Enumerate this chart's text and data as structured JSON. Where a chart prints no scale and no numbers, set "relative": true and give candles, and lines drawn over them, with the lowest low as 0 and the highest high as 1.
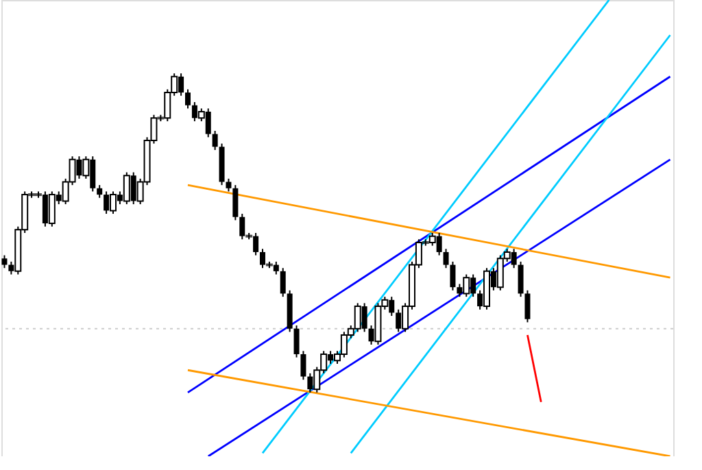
{
  "chart_data": {
    "type": "candlestick",
    "relative": true,
    "grid": false,
    "categories": [
      null,
      null,
      null,
      null,
      null,
      null,
      null,
      null,
      null,
      null,
      null,
      null,
      null,
      null,
      null,
      null,
      null,
      null,
      null,
      null,
      null,
      null,
      null,
      null,
      null,
      null,
      null,
      null,
      null,
      null,
      null,
      null,
      null,
      null,
      null,
      null,
      null,
      null,
      null,
      null,
      null,
      null,
      null,
      null,
      null,
      null,
      null,
      null,
      null,
      null,
      null,
      null,
      null,
      null,
      null,
      null,
      null,
      null,
      null,
      null,
      null,
      null,
      null,
      null,
      null,
      null,
      null,
      null,
      null,
      null,
      null,
      null,
      null,
      null,
      null,
      null,
      null,
      null,
      null,
      null,
      null,
      null,
      null,
      null,
      null,
      null,
      null,
      null,
      null,
      null,
      null,
      null,
      null,
      null,
      null,
      null,
      null,
      null,
      null
    ],
    "ohlc": [
      [
        0.42,
        0.43,
        0.39,
        0.4
      ],
      [
        0.4,
        0.41,
        0.37,
        0.38
      ],
      [
        0.38,
        0.52,
        0.37,
        0.51
      ],
      [
        0.51,
        0.63,
        0.5,
        0.62
      ],
      [
        0.62,
        0.63,
        0.61,
        0.62
      ],
      [
        0.62,
        0.63,
        0.61,
        0.62
      ],
      [
        0.62,
        0.63,
        0.52,
        0.53
      ],
      [
        0.53,
        0.63,
        0.52,
        0.62
      ],
      [
        0.62,
        0.63,
        0.59,
        0.6
      ],
      [
        0.6,
        0.67,
        0.59,
        0.66
      ],
      [
        0.66,
        0.74,
        0.65,
        0.73
      ],
      [
        0.73,
        0.74,
        0.67,
        0.68
      ],
      [
        0.68,
        0.74,
        0.67,
        0.73
      ],
      [
        0.73,
        0.74,
        0.63,
        0.64
      ],
      [
        0.64,
        0.65,
        0.61,
        0.62
      ],
      [
        0.62,
        0.63,
        0.56,
        0.57
      ],
      [
        0.57,
        0.63,
        0.56,
        0.62
      ],
      [
        0.62,
        0.63,
        0.59,
        0.6
      ],
      [
        0.6,
        0.69,
        0.59,
        0.68
      ],
      [
        0.68,
        0.69,
        0.59,
        0.6
      ],
      [
        0.6,
        0.67,
        0.59,
        0.66
      ],
      [
        0.66,
        0.8,
        0.65,
        0.79
      ],
      [
        0.79,
        0.87,
        0.78,
        0.86
      ],
      [
        0.86,
        0.87,
        0.85,
        0.86
      ],
      [
        0.86,
        0.95,
        0.85,
        0.94
      ],
      [
        0.94,
        1.0,
        0.93,
        0.99
      ],
      [
        0.99,
        1.0,
        0.93,
        0.94
      ],
      [
        0.94,
        0.95,
        0.89,
        0.9
      ],
      [
        0.9,
        0.91,
        0.85,
        0.86
      ],
      [
        0.86,
        0.89,
        0.85,
        0.88
      ],
      [
        0.88,
        0.89,
        0.8,
        0.81
      ],
      [
        0.81,
        0.82,
        0.76,
        0.77
      ],
      [
        0.77,
        0.78,
        0.65,
        0.66
      ],
      [
        0.66,
        0.67,
        0.63,
        0.64
      ],
      [
        0.64,
        0.65,
        0.54,
        0.55
      ],
      [
        0.55,
        0.56,
        0.48,
        0.49
      ],
      [
        0.49,
        0.5,
        0.48,
        0.49
      ],
      [
        0.49,
        0.5,
        0.43,
        0.44
      ],
      [
        0.44,
        0.45,
        0.39,
        0.4
      ],
      [
        0.4,
        0.41,
        0.39,
        0.4
      ],
      [
        0.4,
        0.41,
        0.37,
        0.38
      ],
      [
        0.38,
        0.39,
        0.3,
        0.31
      ],
      [
        0.31,
        0.32,
        0.19,
        0.2
      ],
      [
        0.2,
        0.21,
        0.11,
        0.12
      ],
      [
        0.12,
        0.13,
        0.04,
        0.05
      ],
      [
        0.05,
        0.06,
        0.0,
        0.01
      ],
      [
        0.01,
        0.08,
        0.0,
        0.07
      ],
      [
        0.07,
        0.13,
        0.06,
        0.12
      ],
      [
        0.12,
        0.13,
        0.09,
        0.1
      ],
      [
        0.1,
        0.13,
        0.09,
        0.12
      ],
      [
        0.12,
        0.19,
        0.11,
        0.18
      ],
      [
        0.18,
        0.21,
        0.17,
        0.2
      ],
      [
        0.2,
        0.28,
        0.19,
        0.27
      ],
      [
        0.27,
        0.28,
        0.19,
        0.2
      ],
      [
        0.2,
        0.21,
        0.15,
        0.16
      ],
      [
        0.16,
        0.28,
        0.15,
        0.27
      ],
      [
        0.27,
        0.3,
        0.26,
        0.29
      ],
      [
        0.29,
        0.3,
        0.24,
        0.25
      ],
      [
        0.25,
        0.26,
        0.19,
        0.2
      ],
      [
        0.2,
        0.28,
        0.19,
        0.27
      ],
      [
        0.27,
        0.41,
        0.26,
        0.4
      ],
      [
        0.4,
        0.48,
        0.39,
        0.47
      ],
      [
        0.47,
        0.48,
        0.46,
        0.47
      ],
      [
        0.47,
        0.5,
        0.46,
        0.49
      ],
      [
        0.49,
        0.5,
        0.43,
        0.44
      ],
      [
        0.44,
        0.45,
        0.39,
        0.4
      ],
      [
        0.4,
        0.41,
        0.32,
        0.33
      ],
      [
        0.33,
        0.34,
        0.3,
        0.31
      ],
      [
        0.31,
        0.37,
        0.3,
        0.36
      ],
      [
        0.36,
        0.37,
        0.3,
        0.31
      ],
      [
        0.31,
        0.32,
        0.26,
        0.27
      ],
      [
        0.27,
        0.39,
        0.26,
        0.38
      ],
      [
        0.38,
        0.39,
        0.32,
        0.33
      ],
      [
        0.33,
        0.43,
        0.32,
        0.42
      ],
      [
        0.42,
        0.45,
        0.41,
        0.44
      ],
      [
        0.44,
        0.45,
        0.39,
        0.4
      ],
      [
        0.4,
        0.41,
        0.3,
        0.31
      ],
      [
        0.31,
        0.32,
        0.22,
        0.23
      ],
      null,
      null,
      null,
      null,
      null,
      null,
      null,
      null,
      null,
      null,
      null,
      null,
      null,
      null,
      null,
      null,
      null,
      null,
      null,
      null,
      null
    ],
    "ref_lines": [
      {
        "axis": "y",
        "value": 0.2,
        "color": "#cccccc",
        "line_style": "dotted"
      }
    ],
    "series": [
      {
        "type": "line",
        "color": "#0000ff",
        "values": [
          null,
          null,
          null,
          null,
          null,
          null,
          null,
          null,
          null,
          null,
          null,
          null,
          null,
          null,
          null,
          null,
          null,
          null,
          null,
          null,
          null,
          null,
          null,
          null,
          null,
          null,
          null,
          0.0,
          null,
          null,
          null,
          null,
          null,
          null,
          null,
          null,
          null,
          null,
          null,
          null,
          null,
          null,
          null,
          null,
          null,
          null,
          null,
          null,
          null,
          null,
          null,
          null,
          null,
          null,
          null,
          null,
          null,
          null,
          null,
          null,
          null,
          null,
          null,
          null,
          null,
          null,
          null,
          null,
          null,
          null,
          null,
          null,
          null,
          null,
          null,
          null,
          null,
          null,
          null,
          null,
          null,
          null,
          null,
          null,
          null,
          null,
          null,
          null,
          null,
          null,
          null,
          null,
          null,
          null,
          null,
          null,
          null,
          null,
          0.99
        ]
      },
      {
        "type": "line",
        "color": "#0000ff",
        "values": [
          null,
          null,
          null,
          null,
          null,
          null,
          null,
          null,
          null,
          null,
          null,
          null,
          null,
          null,
          null,
          null,
          null,
          null,
          null,
          null,
          null,
          null,
          null,
          null,
          null,
          null,
          null,
          null,
          null,
          null,
          -0.2,
          null,
          null,
          null,
          null,
          null,
          null,
          null,
          null,
          null,
          null,
          null,
          null,
          null,
          null,
          null,
          null,
          null,
          null,
          null,
          null,
          null,
          null,
          null,
          null,
          null,
          null,
          null,
          null,
          null,
          null,
          null,
          null,
          null,
          null,
          null,
          null,
          null,
          null,
          null,
          null,
          null,
          null,
          null,
          null,
          null,
          null,
          null,
          null,
          null,
          null,
          null,
          null,
          null,
          null,
          null,
          null,
          null,
          null,
          null,
          null,
          null,
          null,
          null,
          null,
          null,
          null,
          null,
          0.73
        ]
      },
      {
        "type": "line",
        "color": "#00ccff",
        "values": [
          null,
          null,
          null,
          null,
          null,
          null,
          null,
          null,
          null,
          null,
          null,
          null,
          null,
          null,
          null,
          null,
          null,
          null,
          null,
          null,
          null,
          null,
          null,
          null,
          null,
          null,
          null,
          null,
          null,
          null,
          null,
          null,
          null,
          null,
          null,
          null,
          null,
          null,
          -0.19,
          null,
          null,
          null,
          null,
          null,
          null,
          null,
          null,
          null,
          null,
          null,
          null,
          null,
          null,
          null,
          null,
          null,
          null,
          null,
          null,
          null,
          null,
          null,
          null,
          null,
          null,
          null,
          null,
          null,
          null,
          null,
          null,
          null,
          null,
          null,
          null,
          null,
          null,
          null,
          null,
          null,
          null,
          null,
          null,
          null,
          null,
          null,
          null,
          null,
          null,
          1.23,
          null,
          null,
          null,
          null,
          null,
          null,
          null,
          null,
          null
        ]
      },
      {
        "type": "line",
        "color": "#00ccff",
        "values": [
          null,
          null,
          null,
          null,
          null,
          null,
          null,
          null,
          null,
          null,
          null,
          null,
          null,
          null,
          null,
          null,
          null,
          null,
          null,
          null,
          null,
          null,
          null,
          null,
          null,
          null,
          null,
          null,
          null,
          null,
          null,
          null,
          null,
          null,
          null,
          null,
          null,
          null,
          null,
          null,
          null,
          null,
          null,
          null,
          null,
          null,
          null,
          null,
          null,
          null,
          null,
          -0.19,
          null,
          null,
          null,
          null,
          null,
          null,
          null,
          null,
          null,
          null,
          null,
          null,
          null,
          null,
          null,
          null,
          null,
          null,
          null,
          null,
          null,
          null,
          null,
          null,
          null,
          null,
          null,
          null,
          null,
          null,
          null,
          null,
          null,
          null,
          null,
          null,
          null,
          null,
          null,
          null,
          null,
          null,
          null,
          null,
          null,
          null,
          1.12
        ]
      },
      {
        "type": "line",
        "color": "#ff9900",
        "values": [
          null,
          null,
          null,
          null,
          null,
          null,
          null,
          null,
          null,
          null,
          null,
          null,
          null,
          null,
          null,
          null,
          null,
          null,
          null,
          null,
          null,
          null,
          null,
          null,
          null,
          null,
          null,
          0.65,
          null,
          null,
          null,
          null,
          null,
          null,
          null,
          null,
          null,
          null,
          null,
          null,
          null,
          null,
          null,
          null,
          null,
          null,
          null,
          null,
          null,
          null,
          null,
          null,
          null,
          null,
          null,
          null,
          null,
          null,
          null,
          null,
          null,
          null,
          null,
          null,
          null,
          null,
          null,
          null,
          null,
          null,
          null,
          null,
          null,
          null,
          null,
          null,
          null,
          null,
          null,
          null,
          null,
          null,
          null,
          null,
          null,
          null,
          null,
          null,
          null,
          null,
          null,
          null,
          null,
          null,
          null,
          null,
          null,
          null,
          0.36
        ]
      },
      {
        "type": "line",
        "color": "#ff9900",
        "values": [
          null,
          null,
          null,
          null,
          null,
          null,
          null,
          null,
          null,
          null,
          null,
          null,
          null,
          null,
          null,
          null,
          null,
          null,
          null,
          null,
          null,
          null,
          null,
          null,
          null,
          null,
          null,
          0.07,
          null,
          null,
          null,
          null,
          null,
          null,
          null,
          null,
          null,
          null,
          null,
          null,
          null,
          null,
          null,
          null,
          null,
          null,
          null,
          null,
          null,
          null,
          null,
          null,
          null,
          null,
          null,
          null,
          null,
          null,
          null,
          null,
          null,
          null,
          null,
          null,
          null,
          null,
          null,
          null,
          null,
          null,
          null,
          null,
          null,
          null,
          null,
          null,
          null,
          null,
          null,
          null,
          null,
          null,
          null,
          null,
          null,
          null,
          null,
          null,
          null,
          null,
          null,
          null,
          null,
          null,
          null,
          null,
          null,
          null,
          -0.2
        ]
      },
      {
        "type": "line",
        "color": "#ff0000",
        "values": [
          null,
          null,
          null,
          null,
          null,
          null,
          null,
          null,
          null,
          null,
          null,
          null,
          null,
          null,
          null,
          null,
          null,
          null,
          null,
          null,
          null,
          null,
          null,
          null,
          null,
          null,
          null,
          null,
          null,
          null,
          null,
          null,
          null,
          null,
          null,
          null,
          null,
          null,
          null,
          null,
          null,
          null,
          null,
          null,
          null,
          null,
          null,
          null,
          null,
          null,
          null,
          null,
          null,
          null,
          null,
          null,
          null,
          null,
          null,
          null,
          null,
          null,
          null,
          null,
          null,
          null,
          null,
          null,
          null,
          null,
          null,
          null,
          null,
          null,
          null,
          null,
          null,
          0.18,
          null,
          -0.03,
          null,
          null,
          null,
          null,
          null,
          null,
          null,
          null,
          null,
          null,
          null,
          null,
          null,
          null,
          null,
          null,
          null,
          null,
          null
        ]
      }
    ]
  }
}
